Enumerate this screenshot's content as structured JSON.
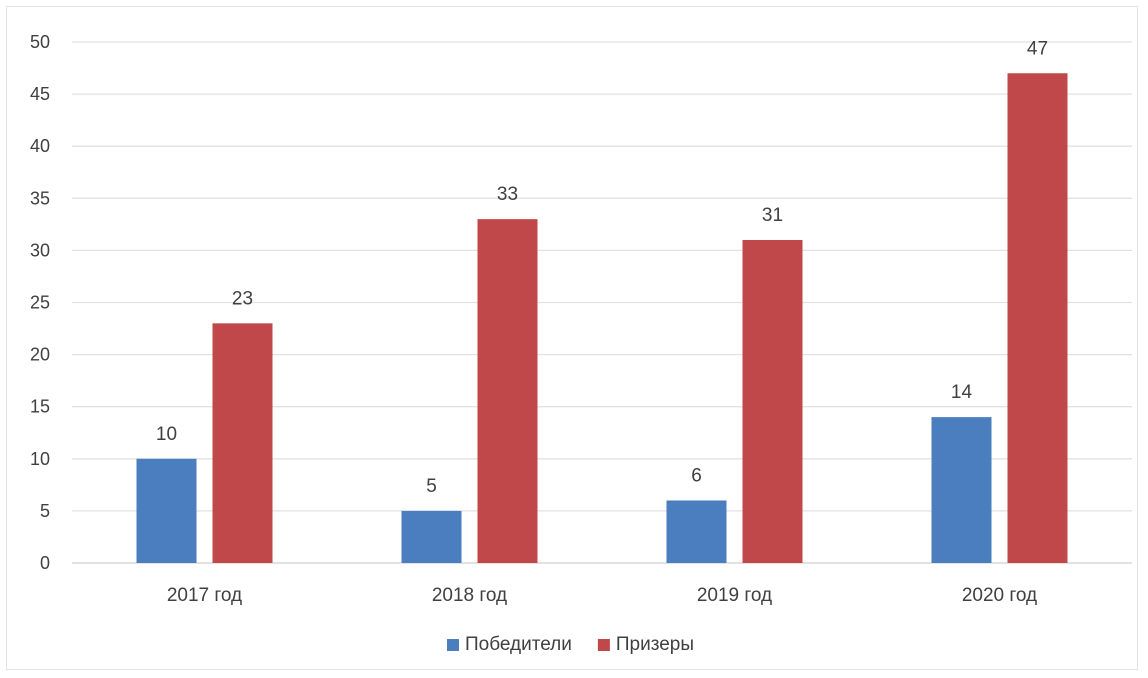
{
  "chart_data": {
    "type": "bar",
    "categories": [
      "2017  год",
      "2018 год",
      "2019 год",
      "2020 год"
    ],
    "series": [
      {
        "name": "Победители",
        "values": [
          10,
          5,
          6,
          14
        ],
        "color": "#4a7ebf"
      },
      {
        "name": "Призеры",
        "values": [
          23,
          33,
          31,
          47
        ],
        "color": "#c0484a"
      }
    ],
    "ylim": [
      0,
      50
    ],
    "yticks": [
      0,
      5,
      10,
      15,
      20,
      25,
      30,
      35,
      40,
      45,
      50
    ],
    "grid": true,
    "legend": "bottom"
  }
}
